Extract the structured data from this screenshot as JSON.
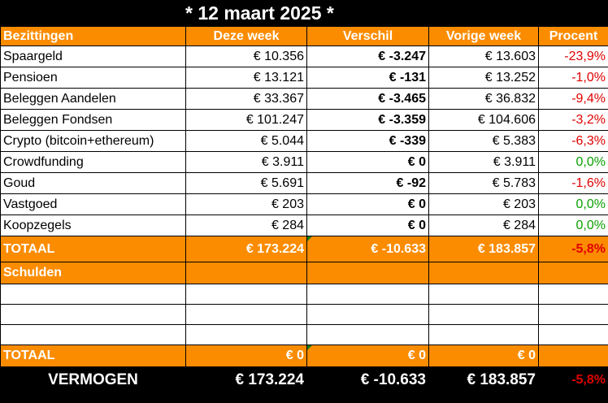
{
  "title": "* 12 maart 2025 *",
  "headers": [
    "Bezittingen",
    "Deze week",
    "Verschil",
    "Vorige week",
    "Procent"
  ],
  "assets": [
    {
      "name": "Spaargeld",
      "current": "€ 10.356",
      "diff": "€ -3.247",
      "previous": "€ 13.603",
      "pct": "-23,9%",
      "trend": "neg"
    },
    {
      "name": "Pensioen",
      "current": "€ 13.121",
      "diff": "€ -131",
      "previous": "€ 13.252",
      "pct": "-1,0%",
      "trend": "neg"
    },
    {
      "name": "Beleggen Aandelen",
      "current": "€ 33.367",
      "diff": "€ -3.465",
      "previous": "€ 36.832",
      "pct": "-9,4%",
      "trend": "neg"
    },
    {
      "name": "Beleggen Fondsen",
      "current": "€ 101.247",
      "diff": "€ -3.359",
      "previous": "€ 104.606",
      "pct": "-3,2%",
      "trend": "neg"
    },
    {
      "name": "Crypto (bitcoin+ethereum)",
      "current": "€ 5.044",
      "diff": "€ -339",
      "previous": "€ 5.383",
      "pct": "-6,3%",
      "trend": "neg"
    },
    {
      "name": "Crowdfunding",
      "current": "€ 3.911",
      "diff": "€ 0",
      "previous": "€ 3.911",
      "pct": "0,0%",
      "trend": "pos"
    },
    {
      "name": "Goud",
      "current": "€ 5.691",
      "diff": "€ -92",
      "previous": "€ 5.783",
      "pct": "-1,6%",
      "trend": "neg"
    },
    {
      "name": "Vastgoed",
      "current": "€ 203",
      "diff": "€ 0",
      "previous": "€ 203",
      "pct": "0,0%",
      "trend": "pos"
    },
    {
      "name": "Koopzegels",
      "current": "€ 284",
      "diff": "€ 0",
      "previous": "€ 284",
      "pct": "0,0%",
      "trend": "pos"
    }
  ],
  "assets_total": {
    "label": "TOTAAL",
    "current": "€ 173.224",
    "diff": "€ -10.633",
    "previous": "€ 183.857",
    "pct": "-5,8%"
  },
  "debts_label": "Schulden",
  "debts_total": {
    "label": "TOTAAL",
    "current": "€ 0",
    "diff": "€ 0",
    "previous": "€ 0",
    "pct": ""
  },
  "net_worth": {
    "label": "VERMOGEN",
    "current": "€ 173.224",
    "diff": "€ -10.633",
    "previous": "€ 183.857",
    "pct": "-5,8%"
  }
}
